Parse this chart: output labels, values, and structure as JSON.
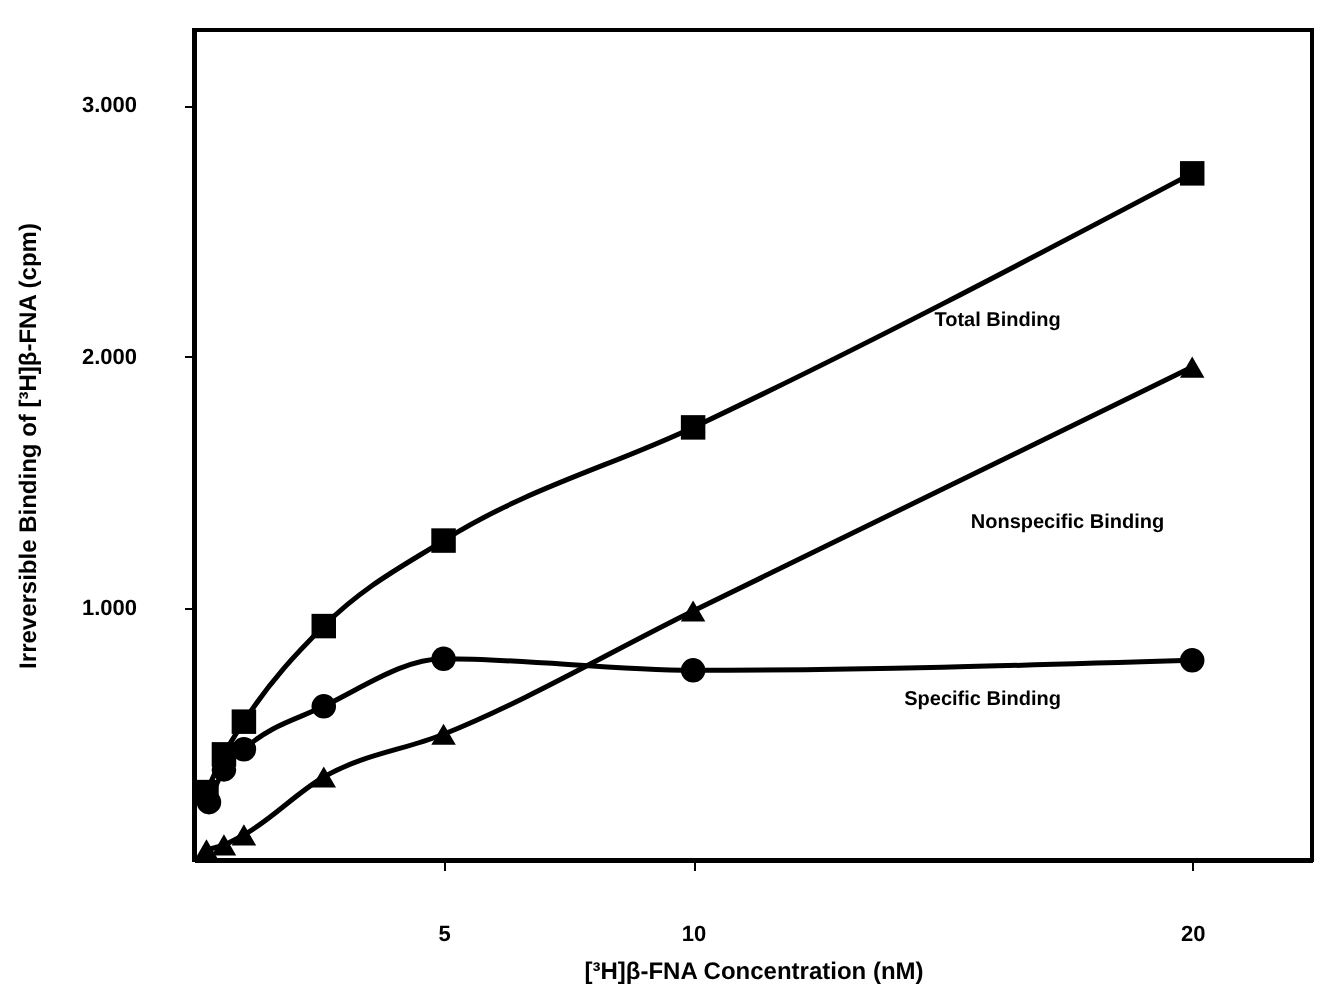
{
  "chart_data": {
    "type": "line",
    "xlabel": "[³H]β-FNA Concentration (nM)",
    "ylabel": "Irreversible Binding of [³H]β-FNA (cpm)",
    "xlim": [
      0,
      22.4
    ],
    "ylim": [
      0,
      3300
    ],
    "xticks": [
      5,
      10,
      20
    ],
    "yticks": [
      {
        "value": 1000,
        "label": "1.000"
      },
      {
        "value": 2000,
        "label": "2.000"
      },
      {
        "value": 3000,
        "label": "3.000"
      }
    ],
    "grid": false,
    "legend": false,
    "line_style": "solid",
    "series": [
      {
        "name": "Total Binding",
        "color": "#000000",
        "marker": "square",
        "x": [
          0.25,
          0.6,
          1.0,
          2.6,
          5,
          10,
          20
        ],
        "values": [
          270,
          420,
          550,
          930,
          1270,
          1720,
          2730
        ]
      },
      {
        "name": "Specific Binding",
        "color": "#000000",
        "marker": "circle",
        "x": [
          0.3,
          0.6,
          1.0,
          2.6,
          5,
          10,
          20
        ],
        "values": [
          230,
          360,
          440,
          611,
          800,
          754,
          794
        ]
      },
      {
        "name": "Nonspecific Binding",
        "color": "#000000",
        "marker": "triangle",
        "x": [
          0.25,
          0.6,
          1.0,
          2.6,
          5,
          10,
          20
        ],
        "values": [
          40,
          60,
          100,
          330,
          500,
          990,
          1960
        ]
      }
    ]
  }
}
